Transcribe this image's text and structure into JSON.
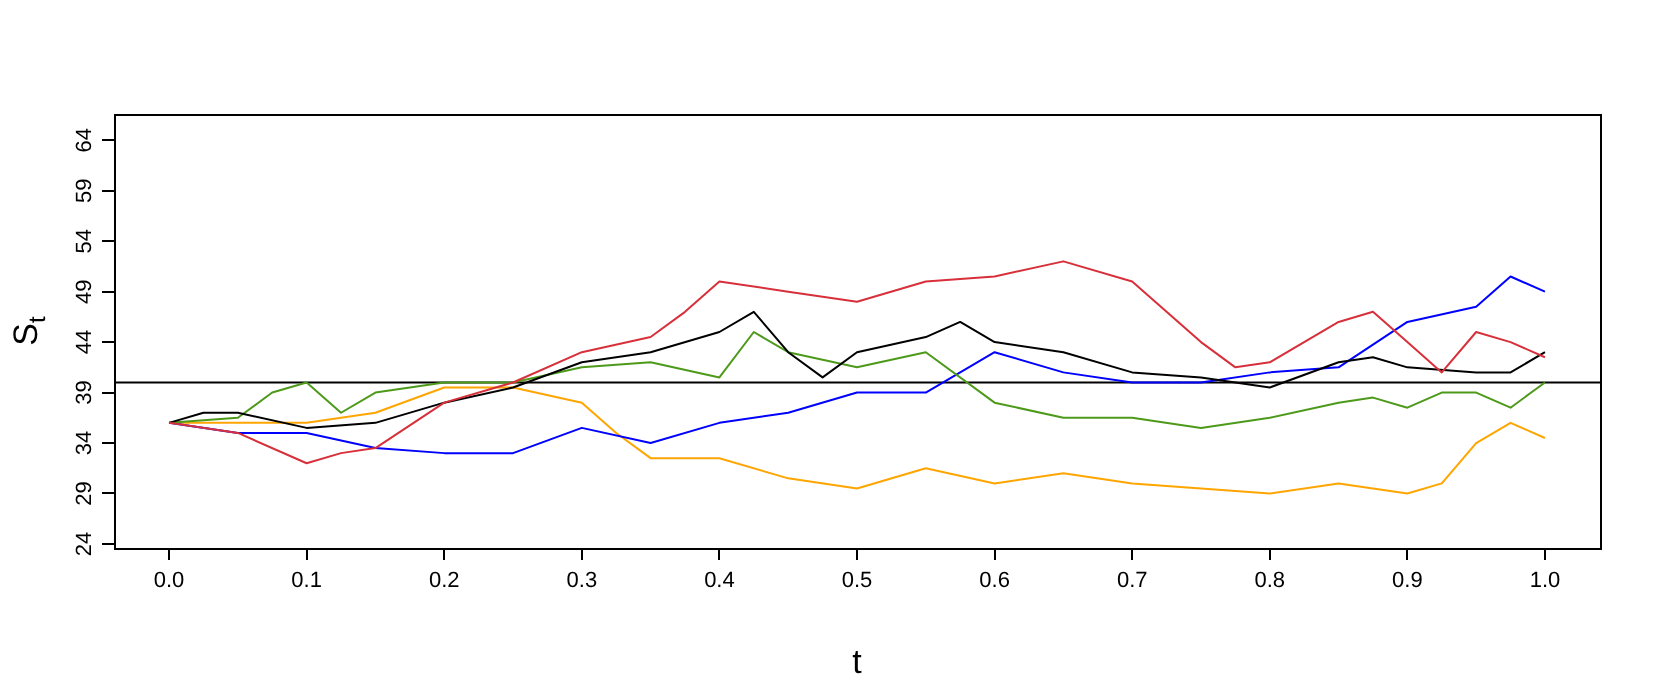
{
  "chart_data": {
    "type": "line",
    "xlabel": "t",
    "ylabel": "S$_{t}$",
    "xlim": [
      -0.04,
      1.04
    ],
    "ylim": [
      23.6,
      66.6
    ],
    "xticks": [
      {
        "value": 0,
        "label": "0.0"
      },
      0.1,
      0.2,
      0.3,
      0.4,
      0.5,
      0.6,
      0.7,
      0.8,
      0.9,
      {
        "value": 1,
        "label": "1.0"
      }
    ],
    "yticks": [
      24,
      29,
      34,
      39,
      44,
      49,
      54,
      59,
      64
    ],
    "grid": false,
    "legend": false,
    "marker": "none",
    "line_style": "solid",
    "ref_lines": [
      {
        "axis": "y",
        "value": 40,
        "color": "#000000"
      }
    ],
    "series": [
      {
        "color": "#d7303a",
        "x": [
          0,
          0.05,
          0.1,
          0.125,
          0.15,
          0.2,
          0.25,
          0.3,
          0.35,
          0.375,
          0.4,
          0.45,
          0.5,
          0.55,
          0.6,
          0.65,
          0.7,
          0.75,
          0.775,
          0.8,
          0.85,
          0.875,
          0.9,
          0.925,
          0.95,
          0.975,
          1.0
        ],
        "values": [
          36,
          35,
          32,
          33,
          33.5,
          38,
          40,
          43,
          44.5,
          47,
          50,
          49,
          48,
          50,
          50.5,
          52,
          50,
          44,
          41.5,
          42,
          46,
          47,
          44,
          41,
          45,
          44,
          42.5
        ]
      },
      {
        "color": "#000000",
        "x": [
          0,
          0.025,
          0.05,
          0.1,
          0.15,
          0.2,
          0.25,
          0.3,
          0.35,
          0.4,
          0.425,
          0.45,
          0.475,
          0.5,
          0.55,
          0.575,
          0.6,
          0.65,
          0.7,
          0.75,
          0.8,
          0.85,
          0.875,
          0.9,
          0.95,
          0.975,
          1.0
        ],
        "values": [
          36,
          37,
          37,
          35.5,
          36,
          38,
          39.5,
          42,
          43,
          45,
          47,
          43,
          40.5,
          43,
          44.5,
          46,
          44,
          43,
          41,
          40.5,
          39.5,
          42,
          42.5,
          41.5,
          41,
          41,
          43
        ]
      },
      {
        "color": "#4d9a1b",
        "x": [
          0,
          0.05,
          0.075,
          0.1,
          0.125,
          0.15,
          0.2,
          0.25,
          0.3,
          0.35,
          0.4,
          0.425,
          0.45,
          0.5,
          0.55,
          0.6,
          0.65,
          0.7,
          0.75,
          0.8,
          0.85,
          0.875,
          0.9,
          0.925,
          0.95,
          0.975,
          1.0
        ],
        "values": [
          36,
          36.5,
          39,
          40,
          37,
          39,
          40,
          40,
          41.5,
          42,
          40.5,
          45,
          43,
          41.5,
          43,
          38,
          36.5,
          36.5,
          35.5,
          36.5,
          38,
          38.5,
          37.5,
          39,
          39,
          37.5,
          40
        ]
      },
      {
        "color": "#0000ff",
        "x": [
          0,
          0.05,
          0.1,
          0.15,
          0.2,
          0.25,
          0.3,
          0.35,
          0.4,
          0.45,
          0.5,
          0.55,
          0.6,
          0.65,
          0.7,
          0.75,
          0.8,
          0.85,
          0.9,
          0.95,
          0.975,
          1.0
        ],
        "values": [
          36,
          35,
          35,
          33.5,
          33,
          33,
          35.5,
          34,
          36,
          37,
          39,
          39,
          43,
          41,
          40,
          40,
          41,
          41.5,
          46,
          47.5,
          50.5,
          49
        ]
      },
      {
        "color": "#ffa500",
        "x": [
          0,
          0.05,
          0.1,
          0.15,
          0.2,
          0.25,
          0.3,
          0.325,
          0.35,
          0.4,
          0.45,
          0.5,
          0.55,
          0.6,
          0.65,
          0.7,
          0.75,
          0.8,
          0.85,
          0.9,
          0.925,
          0.95,
          0.975,
          1.0
        ],
        "values": [
          36,
          36,
          36,
          37,
          39.5,
          39.5,
          38,
          35,
          32.5,
          32.5,
          30.5,
          29.5,
          31.5,
          30,
          31,
          30,
          29.5,
          29,
          30,
          29,
          30,
          34,
          36,
          34.5
        ]
      }
    ]
  }
}
